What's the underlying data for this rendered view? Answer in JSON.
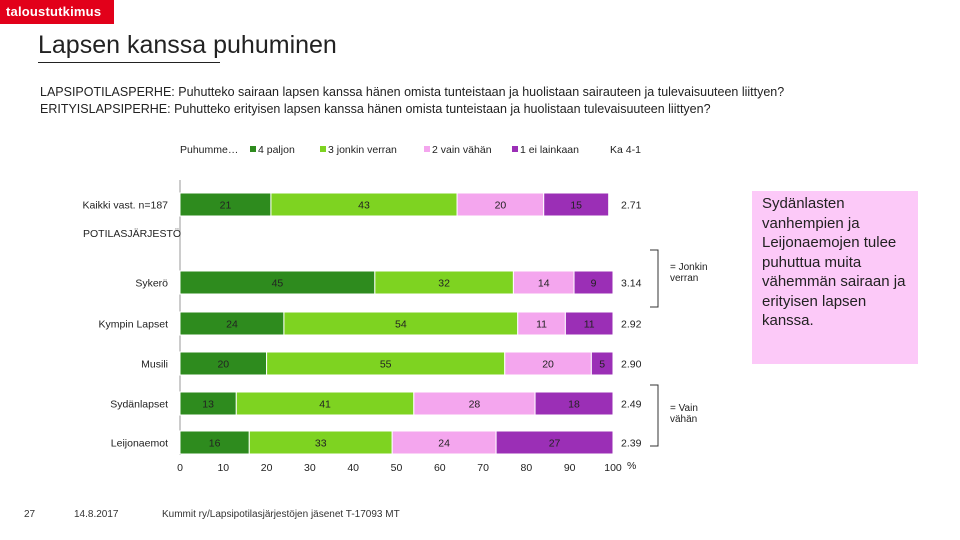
{
  "logo": "taloustutkimus",
  "title": "Lapsen kanssa puhuminen",
  "questions": [
    "LAPSIPOTILASPERHE: Puhutteko sairaan lapsen kanssa hänen omista tunteistaan ja huolistaan sairauteen ja tulevaisuuteen liittyen?",
    "ERITYISLAPSIPERHE: Puhutteko erityisen lapsen kanssa hänen omista tunteistaan ja huolistaan tulevaisuuteen liittyen?"
  ],
  "colors": {
    "dark_green": "#2e8b1e",
    "light_green": "#7ed321",
    "light_pink": "#f4a6ee",
    "purple": "#9b2fb6"
  },
  "chart_data": {
    "type": "bar",
    "orientation": "horizontal",
    "stacked": true,
    "legend_title": "Puhumme…",
    "average_label": "Ka 4-1",
    "section_label": "POTILASJÄRJESTÖ",
    "categories": [
      "Kaikki vast. n=187",
      "Sykerö",
      "Kympin Lapset",
      "Musili",
      "Sydänlapset",
      "Leijonaemot"
    ],
    "series": [
      {
        "name": "4 paljon",
        "color": "#2e8b1e",
        "values": [
          21,
          45,
          24,
          20,
          13,
          16
        ]
      },
      {
        "name": "3 jonkin verran",
        "color": "#7ed321",
        "values": [
          43,
          32,
          54,
          55,
          41,
          33
        ]
      },
      {
        "name": "2 vain vähän",
        "color": "#f4a6ee",
        "values": [
          20,
          14,
          11,
          20,
          28,
          24
        ]
      },
      {
        "name": "1 ei lainkaan",
        "color": "#9b2fb6",
        "values": [
          15,
          9,
          11,
          5,
          18,
          27
        ]
      }
    ],
    "averages": [
      "2.71",
      "3.14",
      "2.92",
      "2.90",
      "2.49",
      "2.39"
    ],
    "xlim": [
      0,
      100
    ],
    "xticks": [
      0,
      10,
      20,
      30,
      40,
      50,
      60,
      70,
      80,
      90,
      100
    ],
    "xlabel": "%"
  },
  "notes": {
    "jonkin_verran": "= Jonkin verran",
    "vain_vahan": "= Vain vähän"
  },
  "side_text": "Sydänlasten vanhempien ja Leijonaemojen tulee puhuttua muita vähemmän sairaan ja erityisen lapsen kanssa.",
  "footer": {
    "page": "27",
    "date": "14.8.2017",
    "source": "Kummit ry/Lapsipotilasjärjestöjen jäsenet T-17093 MT"
  }
}
